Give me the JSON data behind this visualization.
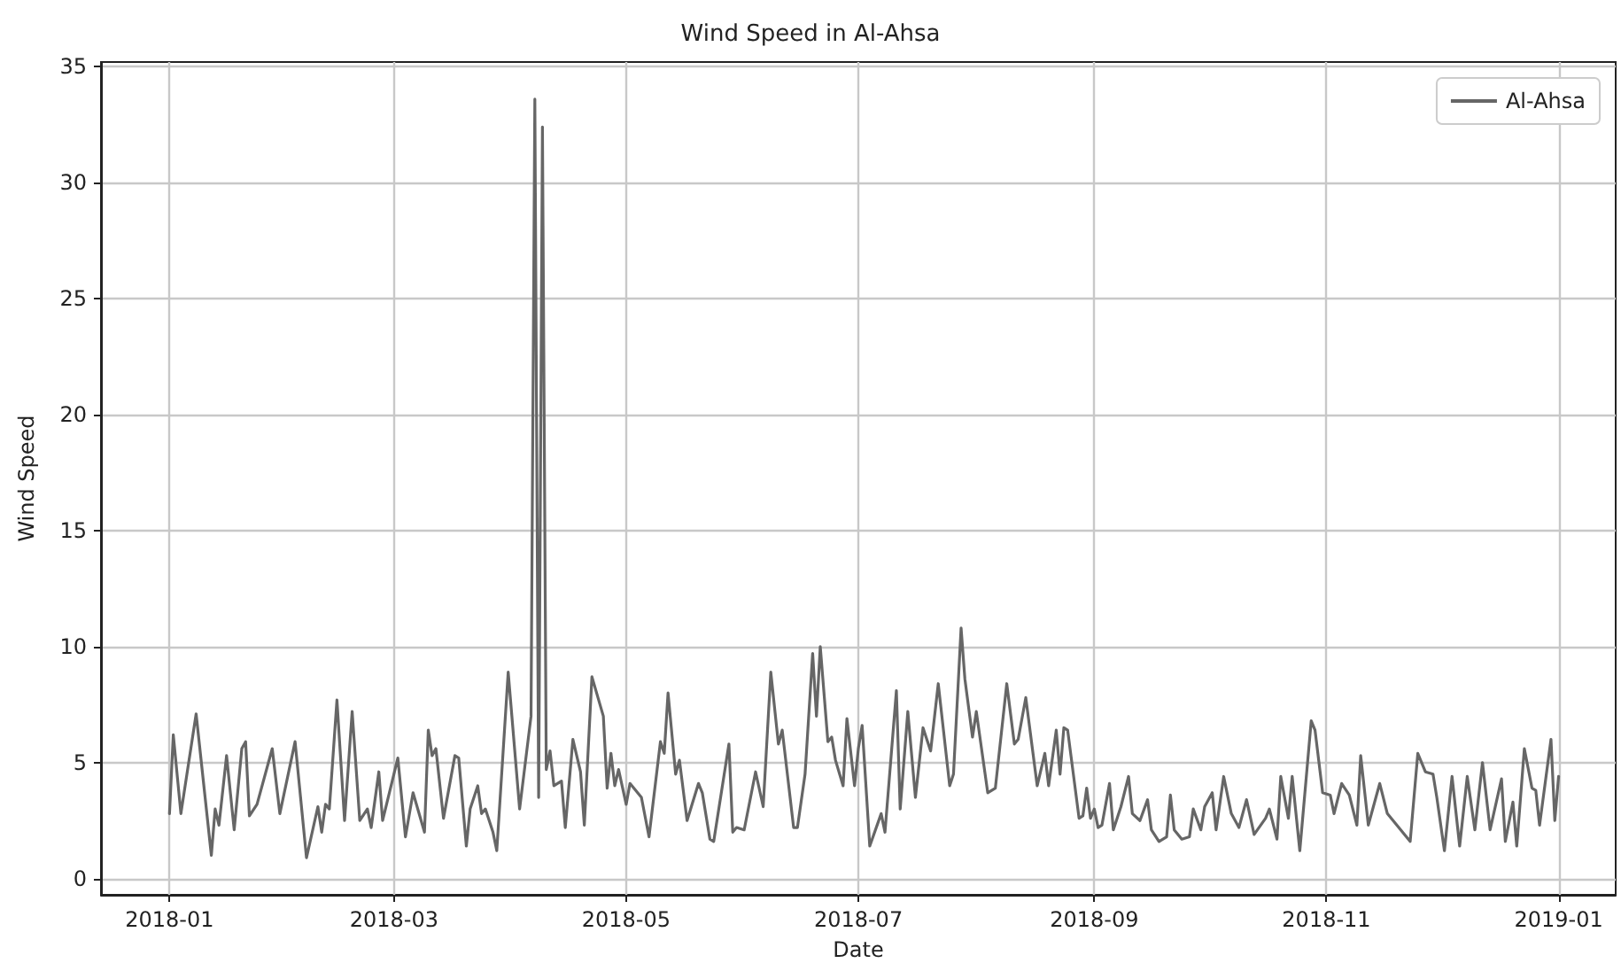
{
  "chart_data": {
    "type": "line",
    "title": "Wind Speed in Al-Ahsa",
    "xlabel": "Date",
    "ylabel": "Wind Speed",
    "x": [
      "2018-01-01",
      "2018-01-02",
      "2018-01-04",
      "2018-01-08",
      "2018-01-12",
      "2018-01-13",
      "2018-01-14",
      "2018-01-16",
      "2018-01-18",
      "2018-01-20",
      "2018-01-21",
      "2018-01-22",
      "2018-01-24",
      "2018-01-28",
      "2018-01-30",
      "2018-02-03",
      "2018-02-06",
      "2018-02-09",
      "2018-02-10",
      "2018-02-11",
      "2018-02-12",
      "2018-02-14",
      "2018-02-16",
      "2018-02-18",
      "2018-02-20",
      "2018-02-22",
      "2018-02-23",
      "2018-02-25",
      "2018-02-26",
      "2018-03-02",
      "2018-03-04",
      "2018-03-06",
      "2018-03-09",
      "2018-03-10",
      "2018-03-11",
      "2018-03-12",
      "2018-03-14",
      "2018-03-17",
      "2018-03-18",
      "2018-03-20",
      "2018-03-21",
      "2018-03-23",
      "2018-03-24",
      "2018-03-25",
      "2018-03-27",
      "2018-03-28",
      "2018-03-31",
      "2018-04-03",
      "2018-04-06",
      "2018-04-07",
      "2018-04-08",
      "2018-04-09",
      "2018-04-10",
      "2018-04-11",
      "2018-04-12",
      "2018-04-14",
      "2018-04-15",
      "2018-04-17",
      "2018-04-19",
      "2018-04-20",
      "2018-04-22",
      "2018-04-25",
      "2018-04-26",
      "2018-04-27",
      "2018-04-28",
      "2018-04-29",
      "2018-05-01",
      "2018-05-02",
      "2018-05-05",
      "2018-05-07",
      "2018-05-10",
      "2018-05-11",
      "2018-05-12",
      "2018-05-14",
      "2018-05-15",
      "2018-05-17",
      "2018-05-20",
      "2018-05-21",
      "2018-05-23",
      "2018-05-24",
      "2018-05-28",
      "2018-05-29",
      "2018-05-30",
      "2018-06-01",
      "2018-06-04",
      "2018-06-06",
      "2018-06-08",
      "2018-06-10",
      "2018-06-11",
      "2018-06-14",
      "2018-06-15",
      "2018-06-17",
      "2018-06-19",
      "2018-06-20",
      "2018-06-21",
      "2018-06-23",
      "2018-06-24",
      "2018-06-25",
      "2018-06-27",
      "2018-06-28",
      "2018-06-30",
      "2018-07-01",
      "2018-07-02",
      "2018-07-04",
      "2018-07-07",
      "2018-07-08",
      "2018-07-11",
      "2018-07-12",
      "2018-07-14",
      "2018-07-16",
      "2018-07-18",
      "2018-07-20",
      "2018-07-22",
      "2018-07-25",
      "2018-07-26",
      "2018-07-28",
      "2018-07-29",
      "2018-07-31",
      "2018-08-01",
      "2018-08-04",
      "2018-08-06",
      "2018-08-09",
      "2018-08-11",
      "2018-08-12",
      "2018-08-14",
      "2018-08-17",
      "2018-08-19",
      "2018-08-20",
      "2018-08-22",
      "2018-08-23",
      "2018-08-24",
      "2018-08-25",
      "2018-08-28",
      "2018-08-29",
      "2018-08-30",
      "2018-08-31",
      "2018-09-01",
      "2018-09-02",
      "2018-09-03",
      "2018-09-05",
      "2018-09-06",
      "2018-09-08",
      "2018-09-10",
      "2018-09-11",
      "2018-09-13",
      "2018-09-15",
      "2018-09-16",
      "2018-09-18",
      "2018-09-20",
      "2018-09-21",
      "2018-09-22",
      "2018-09-24",
      "2018-09-26",
      "2018-09-27",
      "2018-09-29",
      "2018-09-30",
      "2018-10-02",
      "2018-10-03",
      "2018-10-05",
      "2018-10-07",
      "2018-10-09",
      "2018-10-11",
      "2018-10-13",
      "2018-10-16",
      "2018-10-17",
      "2018-10-19",
      "2018-10-20",
      "2018-10-22",
      "2018-10-23",
      "2018-10-25",
      "2018-10-28",
      "2018-10-29",
      "2018-10-31",
      "2018-11-02",
      "2018-11-03",
      "2018-11-05",
      "2018-11-07",
      "2018-11-09",
      "2018-11-10",
      "2018-11-12",
      "2018-11-14",
      "2018-11-15",
      "2018-11-17",
      "2018-11-23",
      "2018-11-25",
      "2018-11-27",
      "2018-11-29",
      "2018-11-30",
      "2018-12-02",
      "2018-12-04",
      "2018-12-06",
      "2018-12-08",
      "2018-12-10",
      "2018-12-12",
      "2018-12-14",
      "2018-12-17",
      "2018-12-18",
      "2018-12-20",
      "2018-12-21",
      "2018-12-23",
      "2018-12-25",
      "2018-12-26",
      "2018-12-27",
      "2018-12-30",
      "2018-12-31",
      "2019-01-01"
    ],
    "series": [
      {
        "name": "Al-Ahsa",
        "color": "#666666",
        "values": [
          2.8,
          6.2,
          2.8,
          7.1,
          1.0,
          3.0,
          2.3,
          5.3,
          2.1,
          5.6,
          5.9,
          2.7,
          3.2,
          5.6,
          2.8,
          5.9,
          0.9,
          3.1,
          2.0,
          3.2,
          3.0,
          7.7,
          2.5,
          7.2,
          2.5,
          3.0,
          2.2,
          4.6,
          2.5,
          5.2,
          1.8,
          3.7,
          2.0,
          6.4,
          5.3,
          5.6,
          2.6,
          5.3,
          5.2,
          1.4,
          3.0,
          4.0,
          2.8,
          3.0,
          2.0,
          1.2,
          8.9,
          3.0,
          7.0,
          33.6,
          3.5,
          32.4,
          4.7,
          5.5,
          4.0,
          4.2,
          2.2,
          6.0,
          4.6,
          2.3,
          8.7,
          7.0,
          3.9,
          5.4,
          4.0,
          4.7,
          3.2,
          4.1,
          3.5,
          1.8,
          5.9,
          5.4,
          8.0,
          4.5,
          5.1,
          2.5,
          4.1,
          3.7,
          1.7,
          1.6,
          5.8,
          2.0,
          2.2,
          2.1,
          4.6,
          3.1,
          8.9,
          5.8,
          6.4,
          2.2,
          2.2,
          4.5,
          9.7,
          7.0,
          10.0,
          5.9,
          6.1,
          5.1,
          4.0,
          6.9,
          4.0,
          5.6,
          6.6,
          1.4,
          2.8,
          2.0,
          8.1,
          3.0,
          7.2,
          3.5,
          6.5,
          5.5,
          8.4,
          4.0,
          4.5,
          10.8,
          8.6,
          6.1,
          7.2,
          3.7,
          3.9,
          8.4,
          5.8,
          6.0,
          7.8,
          4.0,
          5.4,
          4.0,
          6.4,
          4.5,
          6.5,
          6.4,
          2.6,
          2.7,
          3.9,
          2.6,
          3.0,
          2.2,
          2.3,
          4.1,
          2.1,
          3.1,
          4.4,
          2.8,
          2.5,
          3.4,
          2.1,
          1.6,
          1.8,
          3.6,
          2.1,
          1.7,
          1.8,
          3.0,
          2.1,
          3.1,
          3.7,
          2.1,
          4.4,
          2.8,
          2.2,
          3.4,
          1.9,
          2.6,
          3.0,
          1.7,
          4.4,
          2.6,
          4.4,
          1.2,
          6.8,
          6.4,
          3.7,
          3.6,
          2.8,
          4.1,
          3.6,
          2.3,
          5.3,
          2.3,
          3.5,
          4.1,
          2.8,
          1.6,
          5.4,
          4.6,
          4.5,
          3.5,
          1.2,
          4.4,
          1.4,
          4.4,
          2.1,
          5.0,
          2.1,
          4.3,
          1.6,
          3.3,
          1.4,
          5.6,
          3.9,
          3.8,
          2.3,
          6.0,
          2.5,
          4.4
        ]
      }
    ],
    "xlim": [
      "2017-12-14",
      "2019-01-16"
    ],
    "xticks": [
      "2018-01",
      "2018-03",
      "2018-05",
      "2018-07",
      "2018-09",
      "2018-11",
      "2019-01"
    ],
    "ylim": [
      -0.7,
      35.2
    ],
    "yticks": [
      0,
      5,
      10,
      15,
      20,
      25,
      30,
      35
    ],
    "grid": true,
    "legend": "top right",
    "marker": "none",
    "line_style": "solid"
  }
}
